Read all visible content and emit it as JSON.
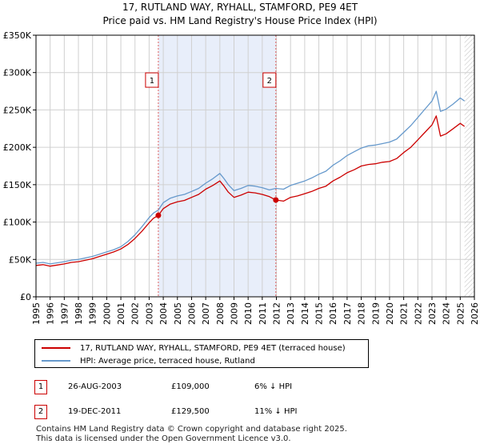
{
  "title": {
    "line1": "17, RUTLAND WAY, RYHALL, STAMFORD, PE9 4ET",
    "line2": "Price paid vs. HM Land Registry's House Price Index (HPI)"
  },
  "colors": {
    "property": "#cc0000",
    "hpi": "#6699cc",
    "highlight": "#e8eefa",
    "grid": "#d0d0d0",
    "marker_line": "#e06060"
  },
  "chart_data": {
    "type": "line",
    "title": "Price paid vs. HM Land Registry's House Price Index (HPI)",
    "xlabel": "",
    "ylabel": "",
    "xlim": [
      1995.0,
      2026.0
    ],
    "ylim": [
      0,
      350000
    ],
    "y_ticks": [
      0,
      50000,
      100000,
      150000,
      200000,
      250000,
      300000,
      350000
    ],
    "y_tick_labels": [
      "£0",
      "£50K",
      "£100K",
      "£150K",
      "£200K",
      "£250K",
      "£300K",
      "£350K"
    ],
    "x_ticks": [
      1995,
      1996,
      1997,
      1998,
      1999,
      2000,
      2001,
      2002,
      2003,
      2004,
      2005,
      2006,
      2007,
      2008,
      2009,
      2010,
      2011,
      2012,
      2013,
      2014,
      2015,
      2016,
      2017,
      2018,
      2019,
      2020,
      2021,
      2022,
      2023,
      2024,
      2025,
      2026
    ],
    "grid": true,
    "highlight_range": [
      2003.65,
      2011.96
    ],
    "hatched_from": 2025.3,
    "series": [
      {
        "name": "17, RUTLAND WAY, RYHALL, STAMFORD, PE9 4ET (terraced house)",
        "color": "#cc0000",
        "x": [
          1995.0,
          1995.5,
          1996.0,
          1996.5,
          1997.0,
          1997.5,
          1998.0,
          1998.5,
          1999.0,
          1999.5,
          2000.0,
          2000.5,
          2001.0,
          2001.5,
          2002.0,
          2002.5,
          2003.0,
          2003.3,
          2003.65,
          2004.0,
          2004.5,
          2005.0,
          2005.5,
          2006.0,
          2006.5,
          2007.0,
          2007.5,
          2008.0,
          2008.3,
          2008.6,
          2009.0,
          2009.5,
          2010.0,
          2010.5,
          2011.0,
          2011.5,
          2011.96,
          2012.5,
          2013.0,
          2013.5,
          2014.0,
          2014.5,
          2015.0,
          2015.5,
          2016.0,
          2016.5,
          2017.0,
          2017.5,
          2018.0,
          2018.5,
          2019.0,
          2019.5,
          2020.0,
          2020.5,
          2021.0,
          2021.5,
          2022.0,
          2022.5,
          2023.0,
          2023.3,
          2023.6,
          2024.0,
          2024.5,
          2025.0,
          2025.3
        ],
        "values": [
          42000,
          43000,
          41000,
          42500,
          44000,
          46000,
          47000,
          49000,
          51000,
          54000,
          57000,
          60000,
          64000,
          70000,
          78000,
          88000,
          99000,
          105000,
          109000,
          118000,
          124000,
          127000,
          129000,
          133000,
          137000,
          144000,
          149000,
          155000,
          148000,
          140000,
          133000,
          136000,
          140000,
          139000,
          137000,
          134000,
          129500,
          128000,
          133000,
          135000,
          138000,
          141000,
          145000,
          148000,
          155000,
          160000,
          166000,
          170000,
          175000,
          177000,
          178000,
          180000,
          181000,
          185000,
          193000,
          200000,
          210000,
          220000,
          230000,
          242000,
          215000,
          218000,
          225000,
          232000,
          228000
        ]
      },
      {
        "name": "HPI: Average price, terraced house, Rutland",
        "color": "#6699cc",
        "x": [
          1995.0,
          1995.5,
          1996.0,
          1996.5,
          1997.0,
          1997.5,
          1998.0,
          1998.5,
          1999.0,
          1999.5,
          2000.0,
          2000.5,
          2001.0,
          2001.5,
          2002.0,
          2002.5,
          2003.0,
          2003.3,
          2003.65,
          2004.0,
          2004.5,
          2005.0,
          2005.5,
          2006.0,
          2006.5,
          2007.0,
          2007.5,
          2008.0,
          2008.3,
          2008.6,
          2009.0,
          2009.5,
          2010.0,
          2010.5,
          2011.0,
          2011.5,
          2011.96,
          2012.5,
          2013.0,
          2013.5,
          2014.0,
          2014.5,
          2015.0,
          2015.5,
          2016.0,
          2016.5,
          2017.0,
          2017.5,
          2018.0,
          2018.5,
          2019.0,
          2019.5,
          2020.0,
          2020.5,
          2021.0,
          2021.5,
          2022.0,
          2022.5,
          2023.0,
          2023.3,
          2023.6,
          2024.0,
          2024.5,
          2025.0,
          2025.3
        ],
        "values": [
          45000,
          46000,
          44000,
          45500,
          47000,
          49000,
          50000,
          52000,
          54000,
          57000,
          60000,
          63000,
          67000,
          74000,
          83000,
          94000,
          106000,
          112000,
          116000,
          126000,
          132000,
          135000,
          137000,
          141000,
          145000,
          152000,
          158000,
          165000,
          158000,
          150000,
          142000,
          145000,
          149000,
          148000,
          146000,
          143000,
          145000,
          144000,
          149000,
          152000,
          155000,
          159000,
          164000,
          168000,
          176000,
          182000,
          189000,
          194000,
          199000,
          202000,
          203000,
          205000,
          207000,
          211000,
          220000,
          229000,
          240000,
          251000,
          262000,
          275000,
          248000,
          251000,
          258000,
          266000,
          262000
        ]
      }
    ],
    "transactions": [
      {
        "id": "1",
        "x": 2003.65,
        "price": 109000,
        "date": "26-AUG-2003",
        "price_label": "£109,000",
        "hpi_label": "6% ↓ HPI"
      },
      {
        "id": "2",
        "x": 2011.96,
        "price": 129500,
        "date": "19-DEC-2011",
        "price_label": "£129,500",
        "hpi_label": "11% ↓ HPI"
      }
    ],
    "marker_label_y": 290000
  },
  "legend": {
    "property_label": "17, RUTLAND WAY, RYHALL, STAMFORD, PE9 4ET (terraced house)",
    "hpi_label": "HPI: Average price, terraced house, Rutland"
  },
  "footer": {
    "line1": "Contains HM Land Registry data © Crown copyright and database right 2025.",
    "line2": "This data is licensed under the Open Government Licence v3.0."
  }
}
